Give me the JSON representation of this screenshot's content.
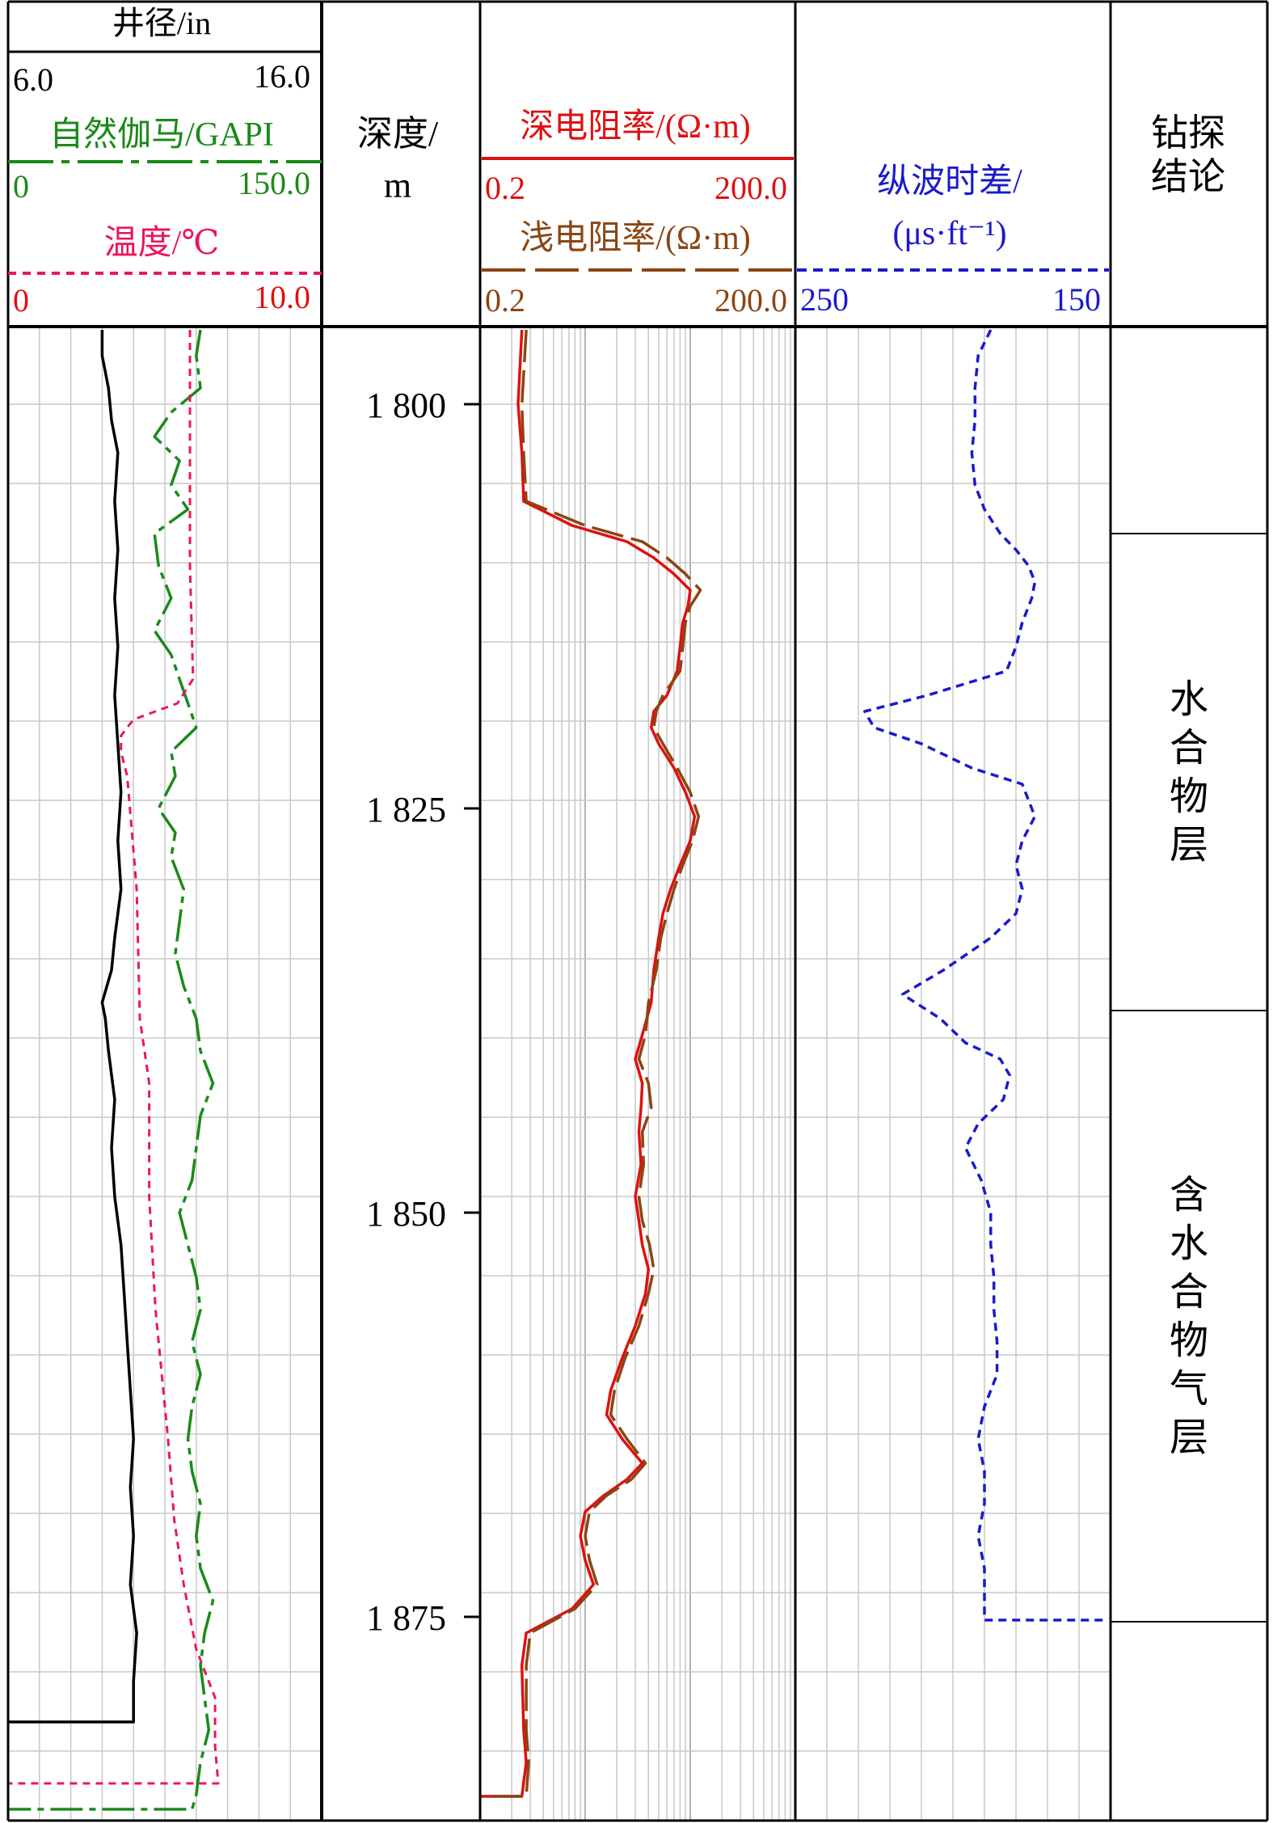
{
  "header": {
    "caliper": {
      "title": "井径/in",
      "min": "6.0",
      "max": "16.0",
      "color": "#000000"
    },
    "gamma": {
      "title": "自然伽马/GAPI",
      "min": "0",
      "max": "150.0",
      "color": "#1a8a1a"
    },
    "temperature": {
      "title": "温度/℃",
      "min": "0",
      "max": "10.0",
      "color": "#e8185a"
    },
    "depth": {
      "title_line1": "深度/",
      "title_line2": "m"
    },
    "deep_res": {
      "title": "深电阻率/(Ω·m)",
      "min": "0.2",
      "max": "200.0",
      "color": "#e01010"
    },
    "shallow_res": {
      "title": "浅电阻率/(Ω·m)",
      "min": "0.2",
      "max": "200.0",
      "color": "#8b4513"
    },
    "sonic": {
      "title_line1": "纵波时差/",
      "title_line2": "(μs·ft⁻¹)",
      "min": "250",
      "max": "150",
      "color": "#1a1acc"
    },
    "conclusion": {
      "title_line1": "钻探",
      "title_line2": "结论"
    }
  },
  "depth_ticks": [
    "1 800",
    "1 825",
    "1 850",
    "1 875"
  ],
  "conclusions": [
    {
      "label": "水合物层",
      "top": 1808.0,
      "bottom": 1837.5
    },
    {
      "label": "含水合物气层",
      "top": 1837.5,
      "bottom": 1875.3
    }
  ],
  "chart_data": {
    "type": "line",
    "y_axis": {
      "label": "深度/m",
      "range": [
        1795.2,
        1887.6
      ],
      "ticks": [
        1800,
        1825,
        1850,
        1875
      ]
    },
    "tracks": [
      {
        "name": "井径/in",
        "scale": "linear",
        "range": [
          6.0,
          16.0
        ],
        "points": [
          [
            1795.4,
            9.0
          ],
          [
            1797,
            9.0
          ],
          [
            1799,
            9.2
          ],
          [
            1801,
            9.3
          ],
          [
            1803,
            9.5
          ],
          [
            1806,
            9.4
          ],
          [
            1809,
            9.5
          ],
          [
            1812,
            9.4
          ],
          [
            1815,
            9.5
          ],
          [
            1818,
            9.4
          ],
          [
            1821,
            9.5
          ],
          [
            1824,
            9.6
          ],
          [
            1827,
            9.5
          ],
          [
            1830,
            9.6
          ],
          [
            1833,
            9.4
          ],
          [
            1835,
            9.3
          ],
          [
            1837,
            9.0
          ],
          [
            1838,
            9.1
          ],
          [
            1840,
            9.2
          ],
          [
            1843,
            9.4
          ],
          [
            1846,
            9.3
          ],
          [
            1849,
            9.4
          ],
          [
            1852,
            9.6
          ],
          [
            1855,
            9.7
          ],
          [
            1858,
            9.8
          ],
          [
            1861,
            9.9
          ],
          [
            1864,
            10.0
          ],
          [
            1867,
            9.9
          ],
          [
            1870,
            10.0
          ],
          [
            1873,
            9.9
          ],
          [
            1876,
            10.1
          ],
          [
            1879,
            10.0
          ],
          [
            1881.5,
            10.0
          ],
          [
            1881.5,
            6.0
          ]
        ]
      },
      {
        "name": "自然伽马/GAPI",
        "scale": "linear",
        "range": [
          0,
          150.0
        ],
        "points": [
          [
            1795.4,
            92
          ],
          [
            1797,
            90
          ],
          [
            1799,
            92
          ],
          [
            1800.5,
            78
          ],
          [
            1802,
            70
          ],
          [
            1803.5,
            82
          ],
          [
            1805,
            78
          ],
          [
            1806.5,
            86
          ],
          [
            1808,
            70
          ],
          [
            1810,
            72
          ],
          [
            1812,
            78
          ],
          [
            1814,
            70
          ],
          [
            1815.5,
            78
          ],
          [
            1817,
            82
          ],
          [
            1818.5,
            86
          ],
          [
            1820,
            90
          ],
          [
            1821.5,
            78
          ],
          [
            1823,
            80
          ],
          [
            1825,
            72
          ],
          [
            1826.5,
            80
          ],
          [
            1828,
            78
          ],
          [
            1830,
            84
          ],
          [
            1832,
            82
          ],
          [
            1834,
            80
          ],
          [
            1836,
            84
          ],
          [
            1838,
            90
          ],
          [
            1840,
            92
          ],
          [
            1842,
            98
          ],
          [
            1844,
            92
          ],
          [
            1846,
            90
          ],
          [
            1848,
            88
          ],
          [
            1850,
            82
          ],
          [
            1852,
            86
          ],
          [
            1854,
            90
          ],
          [
            1856,
            92
          ],
          [
            1858,
            88
          ],
          [
            1860,
            92
          ],
          [
            1862,
            88
          ],
          [
            1864,
            86
          ],
          [
            1866,
            88
          ],
          [
            1868,
            92
          ],
          [
            1870,
            90
          ],
          [
            1872,
            92
          ],
          [
            1874,
            98
          ],
          [
            1876,
            94
          ],
          [
            1878,
            92
          ],
          [
            1880,
            94
          ],
          [
            1882,
            96
          ],
          [
            1884,
            92
          ],
          [
            1886,
            90
          ],
          [
            1886.9,
            88
          ],
          [
            1886.9,
            0
          ]
        ]
      },
      {
        "name": "温度/℃",
        "scale": "linear",
        "range": [
          0,
          10.0
        ],
        "points": [
          [
            1795.4,
            5.8
          ],
          [
            1810,
            5.8
          ],
          [
            1817,
            5.9
          ],
          [
            1818.5,
            5.4
          ],
          [
            1819.5,
            4.0
          ],
          [
            1820.5,
            3.6
          ],
          [
            1821.5,
            3.6
          ],
          [
            1823,
            3.8
          ],
          [
            1830,
            4.1
          ],
          [
            1838,
            4.2
          ],
          [
            1842,
            4.5
          ],
          [
            1849,
            4.5
          ],
          [
            1856,
            4.7
          ],
          [
            1864,
            5.1
          ],
          [
            1869,
            5.3
          ],
          [
            1873,
            5.6
          ],
          [
            1877,
            6.0
          ],
          [
            1880,
            6.6
          ],
          [
            1883,
            6.6
          ],
          [
            1885.3,
            6.7
          ],
          [
            1885.3,
            0
          ]
        ]
      },
      {
        "name": "深电阻率/(Ω·m)",
        "scale": "log",
        "range": [
          0.2,
          200.0
        ],
        "points": [
          [
            1795.4,
            0.5
          ],
          [
            1800,
            0.46
          ],
          [
            1803,
            0.5
          ],
          [
            1806,
            0.52
          ],
          [
            1807.5,
            1.5
          ],
          [
            1808.5,
            5
          ],
          [
            1809.5,
            9
          ],
          [
            1810.5,
            14
          ],
          [
            1811.5,
            20
          ],
          [
            1812.5,
            19
          ],
          [
            1813.5,
            17
          ],
          [
            1815,
            16
          ],
          [
            1816.5,
            15
          ],
          [
            1818,
            12
          ],
          [
            1819,
            9
          ],
          [
            1820,
            8.5
          ],
          [
            1821,
            10
          ],
          [
            1822.5,
            14
          ],
          [
            1824,
            18
          ],
          [
            1825.5,
            22
          ],
          [
            1827,
            20
          ],
          [
            1828.5,
            16
          ],
          [
            1830,
            13
          ],
          [
            1831.5,
            11
          ],
          [
            1833,
            10
          ],
          [
            1835,
            9
          ],
          [
            1837,
            8.5
          ],
          [
            1839,
            7
          ],
          [
            1840.5,
            6
          ],
          [
            1842,
            7
          ],
          [
            1843.5,
            6.8
          ],
          [
            1845,
            6.5
          ],
          [
            1847,
            6.8
          ],
          [
            1849,
            6
          ],
          [
            1850.5,
            6.5
          ],
          [
            1852,
            7
          ],
          [
            1853.5,
            8
          ],
          [
            1855,
            7.5
          ],
          [
            1857,
            6
          ],
          [
            1859,
            4.5
          ],
          [
            1861,
            3.5
          ],
          [
            1862.5,
            3.2
          ],
          [
            1864,
            4.5
          ],
          [
            1865.5,
            7
          ],
          [
            1866.5,
            5
          ],
          [
            1867.5,
            3
          ],
          [
            1868.5,
            2
          ],
          [
            1870,
            1.8
          ],
          [
            1871.5,
            2
          ],
          [
            1873,
            2.4
          ],
          [
            1874.5,
            1.5
          ],
          [
            1876,
            0.55
          ],
          [
            1878,
            0.5
          ],
          [
            1882,
            0.52
          ],
          [
            1884,
            0.55
          ],
          [
            1886.1,
            0.5
          ],
          [
            1886.1,
            0.2
          ]
        ]
      },
      {
        "name": "浅电阻率/(Ω·m)",
        "scale": "log",
        "range": [
          0.2,
          200.0
        ],
        "points": [
          [
            1795.4,
            0.55
          ],
          [
            1800,
            0.5
          ],
          [
            1803,
            0.52
          ],
          [
            1806,
            0.55
          ],
          [
            1807.5,
            2
          ],
          [
            1808.5,
            7
          ],
          [
            1809.5,
            12
          ],
          [
            1810.5,
            18
          ],
          [
            1811.5,
            25
          ],
          [
            1812.5,
            20
          ],
          [
            1813.5,
            18
          ],
          [
            1815,
            17
          ],
          [
            1816.5,
            16
          ],
          [
            1818,
            11
          ],
          [
            1819,
            9.5
          ],
          [
            1820,
            9
          ],
          [
            1821,
            11
          ],
          [
            1822.5,
            15
          ],
          [
            1824,
            20
          ],
          [
            1825.5,
            24
          ],
          [
            1827,
            21
          ],
          [
            1828.5,
            17
          ],
          [
            1830,
            14
          ],
          [
            1831.5,
            12
          ],
          [
            1833,
            10.5
          ],
          [
            1835,
            9.5
          ],
          [
            1837,
            8
          ],
          [
            1839,
            7.5
          ],
          [
            1840.5,
            6.5
          ],
          [
            1842,
            8
          ],
          [
            1843.5,
            8.5
          ],
          [
            1845,
            7
          ],
          [
            1847,
            7.2
          ],
          [
            1849,
            6.5
          ],
          [
            1850.5,
            7
          ],
          [
            1852,
            8.2
          ],
          [
            1853.5,
            9
          ],
          [
            1855,
            8
          ],
          [
            1857,
            6.5
          ],
          [
            1859,
            4.8
          ],
          [
            1861,
            3.8
          ],
          [
            1862.5,
            3.5
          ],
          [
            1864,
            5
          ],
          [
            1865.5,
            7.5
          ],
          [
            1866.5,
            5.5
          ],
          [
            1867.5,
            3.2
          ],
          [
            1868.5,
            2.2
          ],
          [
            1870,
            2
          ],
          [
            1871.5,
            2.2
          ],
          [
            1873,
            2.6
          ],
          [
            1874.5,
            1.6
          ],
          [
            1876,
            0.6
          ],
          [
            1878,
            0.55
          ],
          [
            1882,
            0.55
          ],
          [
            1884,
            0.58
          ],
          [
            1886.1,
            0.55
          ],
          [
            1886.1,
            0.2
          ]
        ]
      },
      {
        "name": "纵波时差/(μs·ft⁻¹)",
        "scale": "linear",
        "range": [
          250,
          150
        ],
        "points": [
          [
            1795.4,
            188
          ],
          [
            1797,
            192
          ],
          [
            1799,
            193
          ],
          [
            1801,
            193
          ],
          [
            1803,
            194
          ],
          [
            1805,
            193
          ],
          [
            1806.5,
            190
          ],
          [
            1808,
            185
          ],
          [
            1809,
            180
          ],
          [
            1810,
            176
          ],
          [
            1811,
            174
          ],
          [
            1812,
            175
          ],
          [
            1813.5,
            178
          ],
          [
            1815,
            180
          ],
          [
            1816.5,
            183
          ],
          [
            1818,
            208
          ],
          [
            1819,
            228
          ],
          [
            1820,
            225
          ],
          [
            1821,
            210
          ],
          [
            1822.5,
            194
          ],
          [
            1823.5,
            178
          ],
          [
            1824.5,
            176
          ],
          [
            1825.5,
            174
          ],
          [
            1827,
            178
          ],
          [
            1828.5,
            180
          ],
          [
            1830,
            178
          ],
          [
            1831.5,
            180
          ],
          [
            1833,
            188
          ],
          [
            1835,
            203
          ],
          [
            1836.5,
            216
          ],
          [
            1838,
            204
          ],
          [
            1839.5,
            196
          ],
          [
            1840.5,
            185
          ],
          [
            1841.5,
            182
          ],
          [
            1843,
            184
          ],
          [
            1844.5,
            192
          ],
          [
            1846,
            196
          ],
          [
            1848,
            191
          ],
          [
            1850,
            188
          ],
          [
            1852,
            188
          ],
          [
            1854,
            187
          ],
          [
            1856,
            187
          ],
          [
            1858,
            186
          ],
          [
            1860,
            186
          ],
          [
            1862,
            190
          ],
          [
            1864,
            192
          ],
          [
            1866,
            190
          ],
          [
            1868,
            190
          ],
          [
            1870,
            192
          ],
          [
            1872,
            190
          ],
          [
            1873.5,
            190
          ],
          [
            1874.5,
            190
          ],
          [
            1875.2,
            190
          ],
          [
            1875.2,
            152
          ]
        ]
      }
    ]
  }
}
